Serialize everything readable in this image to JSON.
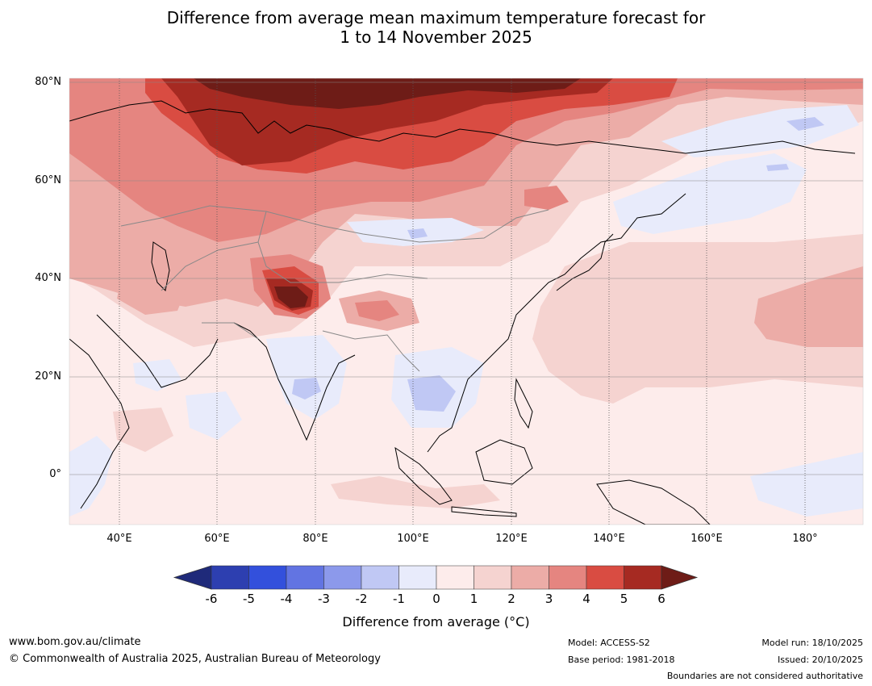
{
  "title": {
    "line1": "Difference from average mean maximum temperature forecast for",
    "line2": "1 to 14 November 2025"
  },
  "map": {
    "lat_labels": [
      "80°N",
      "60°N",
      "40°N",
      "20°N",
      "0°"
    ],
    "lon_labels": [
      "40°E",
      "60°E",
      "80°E",
      "100°E",
      "120°E",
      "140°E",
      "160°E",
      "180°"
    ],
    "extent": {
      "lon_min": 30,
      "lon_max": 192,
      "lat_min": -10,
      "lat_max": 80
    },
    "hotspot": "Tibetan Plateau / Himalaya region, anomaly above 6°C"
  },
  "colorbar": {
    "ticks": [
      "-6",
      "-5",
      "-4",
      "-3",
      "-2",
      "-1",
      "0",
      "1",
      "2",
      "3",
      "4",
      "5",
      "6"
    ],
    "colors": [
      "#1f2a7a",
      "#2d3fb0",
      "#3350dc",
      "#6274e2",
      "#8c99eb",
      "#c0c8f4",
      "#e8ebfb",
      "#fdeceb",
      "#f5d3d0",
      "#ecaca7",
      "#e58580",
      "#d94c42",
      "#a62a22",
      "#6e1c17"
    ],
    "label": "Difference from average (°C)"
  },
  "footer": {
    "url": "www.bom.gov.au/climate",
    "copyright": "© Commonwealth of Australia 2025, Australian Bureau of Meteorology",
    "model": "Model: ACCESS-S2",
    "base_period": "Base period: 1981-2018",
    "model_run": "Model run: 18/10/2025",
    "issued": "Issued: 20/10/2025",
    "boundaries": "Boundaries are not considered authoritative"
  }
}
